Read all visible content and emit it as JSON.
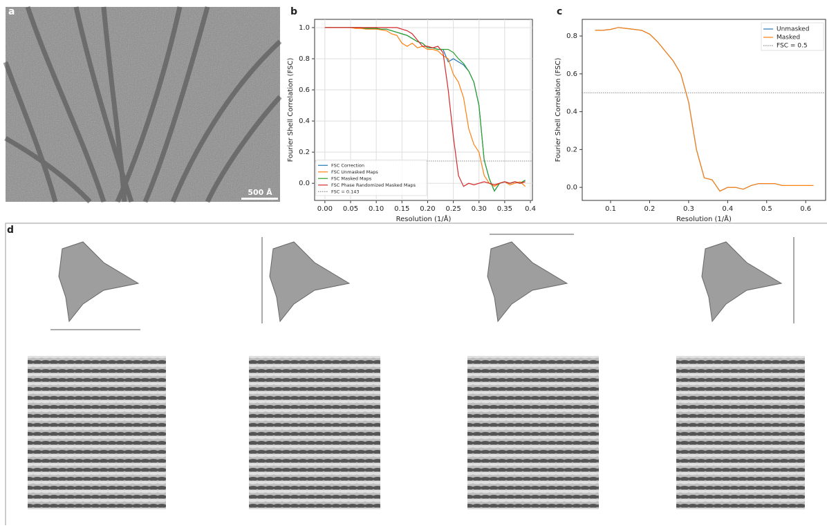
{
  "panel_labels": [
    "a",
    "b",
    "c",
    "d"
  ],
  "scale_bar": "500 Å",
  "chart_data": [
    {
      "type": "line",
      "legend": "lower left",
      "grid": true,
      "xlabel": "Resolution (1/Å)",
      "ylabel": "Fourier Shell Correlation (FSC)",
      "xlim": [
        -0.02,
        0.404
      ],
      "ylim": [
        -0.11,
        1.053
      ],
      "xticks": [
        {
          "value": 0,
          "label": "0.00"
        },
        {
          "value": 0.05,
          "label": "0.05"
        },
        {
          "value": 0.1,
          "label": "0.10"
        },
        {
          "value": 0.15,
          "label": "0.15"
        },
        {
          "value": 0.2,
          "label": "0.20"
        },
        {
          "value": 0.25,
          "label": "0.25"
        },
        {
          "value": 0.3,
          "label": "0.30"
        },
        {
          "value": 0.35,
          "label": "0.35"
        },
        {
          "value": 0.4,
          "label": "0.4"
        }
      ],
      "yticks": [
        {
          "value": 0,
          "label": "0.0"
        },
        0.2,
        0.4,
        0.6,
        0.8,
        {
          "value": 1,
          "label": "1.0"
        }
      ],
      "x": [
        0,
        0.01,
        0.02,
        0.03,
        0.04,
        0.05,
        0.06,
        0.07,
        0.08,
        0.09,
        0.1,
        0.11,
        0.12,
        0.13,
        0.14,
        0.15,
        0.16,
        0.17,
        0.18,
        0.19,
        0.2,
        0.21,
        0.22,
        0.23,
        0.24,
        0.25,
        0.26,
        0.27,
        0.28,
        0.29,
        0.3,
        0.31,
        0.32,
        0.33,
        0.34,
        0.35,
        0.36,
        0.37,
        0.38,
        0.39
      ],
      "series": [
        {
          "name": "FSC Correction",
          "color": "#1f77b4",
          "values": [
            1,
            1,
            1,
            1,
            1,
            1,
            1,
            1,
            0.995,
            0.995,
            0.995,
            0.99,
            0.99,
            0.98,
            0.97,
            0.96,
            0.95,
            0.93,
            0.91,
            0.9,
            0.87,
            0.87,
            0.86,
            0.86,
            0.78,
            0.8,
            0.78,
            0.76,
            0.72,
            0.65,
            0.5,
            0.15,
            0.03,
            -0.05,
            0,
            0.01,
            0,
            0.01,
            0,
            0.02
          ]
        },
        {
          "name": "FSC Unmasked Maps",
          "color": "#ff7f0e",
          "values": [
            1,
            1,
            1,
            1,
            1,
            1,
            0.995,
            0.995,
            0.99,
            0.99,
            0.99,
            0.985,
            0.98,
            0.96,
            0.95,
            0.9,
            0.88,
            0.9,
            0.87,
            0.88,
            0.86,
            0.86,
            0.85,
            0.82,
            0.8,
            0.7,
            0.65,
            0.55,
            0.35,
            0.25,
            0.2,
            0.05,
            0,
            -0.02,
            0,
            0.01,
            -0.01,
            0,
            0.01,
            -0.02
          ]
        },
        {
          "name": "FSC Masked Maps",
          "color": "#2ca02c",
          "values": [
            1,
            1,
            1,
            1,
            1,
            1,
            1,
            1,
            0.995,
            0.995,
            0.995,
            0.99,
            0.99,
            0.98,
            0.97,
            0.96,
            0.95,
            0.93,
            0.91,
            0.9,
            0.87,
            0.87,
            0.86,
            0.86,
            0.86,
            0.84,
            0.8,
            0.77,
            0.72,
            0.65,
            0.5,
            0.15,
            0.03,
            -0.05,
            0,
            0.01,
            0,
            0.01,
            0,
            0.02
          ]
        },
        {
          "name": "FSC Phase Randomized Masked Maps",
          "color": "#d62728",
          "values": [
            1,
            1,
            1,
            1,
            1,
            1,
            1,
            1,
            1,
            1,
            1,
            1,
            1,
            1,
            1,
            0.99,
            0.98,
            0.96,
            0.92,
            0.88,
            0.88,
            0.87,
            0.88,
            0.84,
            0.6,
            0.3,
            0.05,
            -0.02,
            0,
            -0.01,
            0,
            0.01,
            0,
            -0.01,
            0,
            0.01,
            0,
            0.01,
            0,
            0.01
          ]
        }
      ],
      "threshold": {
        "name": "FSC = 0.143",
        "value": 0.143
      }
    },
    {
      "type": "line",
      "legend": "upper right",
      "grid": false,
      "xlabel": "Resolution (1/Å)",
      "ylabel": "Fourier Shell Correlation (FSC)",
      "xlim": [
        0.0273,
        0.651
      ],
      "ylim": [
        -0.069,
        0.888
      ],
      "xticks": [
        0.1,
        0.2,
        0.3,
        0.4,
        0.5,
        0.6
      ],
      "yticks": [
        {
          "value": 0,
          "label": "0.0"
        },
        0.2,
        0.4,
        0.6,
        0.8
      ],
      "x": [
        0.06,
        0.08,
        0.1,
        0.12,
        0.14,
        0.16,
        0.18,
        0.2,
        0.22,
        0.24,
        0.26,
        0.28,
        0.3,
        0.32,
        0.34,
        0.36,
        0.38,
        0.4,
        0.42,
        0.44,
        0.46,
        0.48,
        0.5,
        0.52,
        0.54,
        0.56,
        0.58,
        0.6,
        0.62
      ],
      "series": [
        {
          "name": "Unmasked",
          "color": "#1f77b4",
          "values": [
            0.83,
            0.83,
            0.835,
            0.845,
            0.84,
            0.835,
            0.83,
            0.81,
            0.77,
            0.72,
            0.67,
            0.6,
            0.45,
            0.2,
            0.05,
            0.04,
            -0.02,
            0,
            0,
            -0.01,
            0.01,
            0.02,
            0.02,
            0.02,
            0.01,
            null,
            null,
            null,
            null
          ]
        },
        {
          "name": "Masked",
          "color": "#ff7f0e",
          "values": [
            0.83,
            0.83,
            0.835,
            0.845,
            0.84,
            0.835,
            0.83,
            0.81,
            0.77,
            0.72,
            0.67,
            0.6,
            0.45,
            0.2,
            0.05,
            0.04,
            -0.02,
            0,
            0,
            -0.01,
            0.01,
            0.02,
            0.02,
            0.02,
            0.01,
            0.01,
            0.01,
            0.01,
            0.01
          ]
        }
      ],
      "threshold": {
        "name": "FSC = 0.5",
        "value": 0.5
      }
    }
  ]
}
